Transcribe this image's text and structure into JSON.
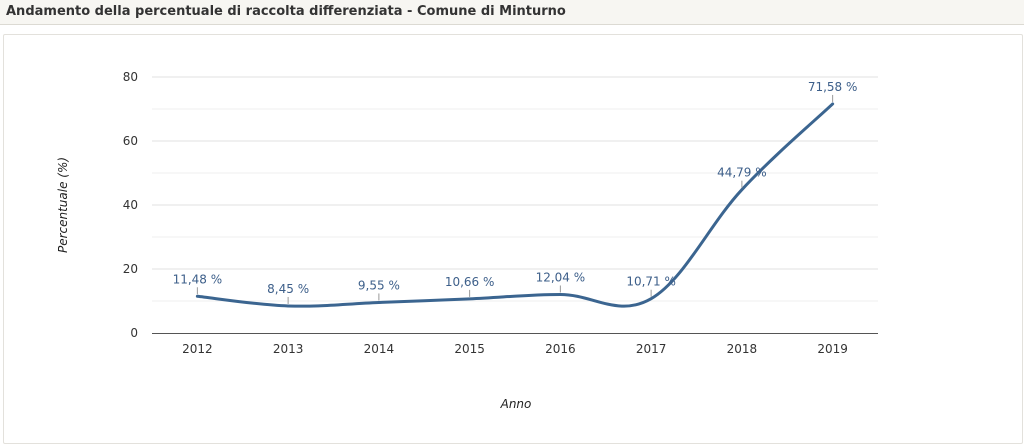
{
  "header": {
    "title": "Andamento della percentuale di raccolta differenziata - Comune di Minturno"
  },
  "colors": {
    "line": "#3b6590",
    "label": "#3d5f8a",
    "grid": "#e2e2e2",
    "axis": "#555555"
  },
  "chart_data": {
    "type": "line",
    "title": "Andamento della percentuale di raccolta differenziata - Comune di Minturno",
    "xlabel": "Anno",
    "ylabel": "Percentuale (%)",
    "categories": [
      "2012",
      "2013",
      "2014",
      "2015",
      "2016",
      "2017",
      "2018",
      "2019"
    ],
    "values": [
      11.48,
      8.45,
      9.55,
      10.66,
      12.04,
      10.71,
      44.79,
      71.58
    ],
    "data_labels": [
      "11,48 %",
      "8,45 %",
      "9,55 %",
      "10,66 %",
      "12,04 %",
      "10,71 %",
      "44,79 %",
      "71,58 %"
    ],
    "ylim": [
      0,
      80
    ],
    "yticks": [
      0,
      20,
      40,
      60,
      80
    ],
    "minor_grid": [
      10,
      30,
      50,
      70
    ],
    "grid": true,
    "legend": "none"
  }
}
